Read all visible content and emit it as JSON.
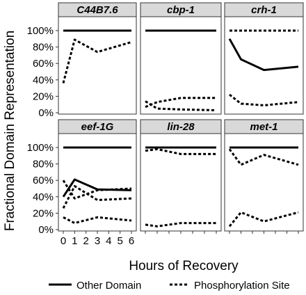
{
  "chart_data": {
    "type": "line",
    "ylabel": "Fractional Domain Representation",
    "xlabel": "Hours of Recovery",
    "ylim": [
      0,
      1
    ],
    "xlim": [
      0,
      6
    ],
    "x_ticks": [
      0,
      1,
      2,
      3,
      4,
      5,
      6
    ],
    "y_ticks": [
      "0%",
      "20%",
      "40%",
      "60%",
      "80%",
      "100%"
    ],
    "legend": {
      "placement": "bottom",
      "items": [
        {
          "label": "Other Domain",
          "style": "solid"
        },
        {
          "label": "Phosphorylation Site",
          "style": "dashed"
        }
      ]
    },
    "panels": [
      {
        "title": "C44B7.6",
        "series": [
          {
            "type": "Other Domain",
            "x": [
              0,
              1,
              3,
              6
            ],
            "values": [
              1.0,
              1.0,
              1.0,
              1.0
            ]
          },
          {
            "type": "Phosphorylation Site",
            "x": [
              0,
              1,
              3,
              6
            ],
            "values": [
              0.36,
              0.89,
              0.74,
              0.86
            ]
          }
        ]
      },
      {
        "title": "cbp-1",
        "series": [
          {
            "type": "Other Domain",
            "x": [
              0,
              1,
              3,
              6
            ],
            "values": [
              1.0,
              1.0,
              1.0,
              1.0
            ]
          },
          {
            "type": "Phosphorylation Site",
            "x": [
              0,
              1,
              3,
              6
            ],
            "values": [
              0.14,
              0.05,
              0.04,
              0.03
            ]
          },
          {
            "type": "Phosphorylation Site",
            "x": [
              0,
              1,
              3,
              6
            ],
            "values": [
              0.07,
              0.13,
              0.18,
              0.18
            ]
          }
        ]
      },
      {
        "title": "crh-1",
        "series": [
          {
            "type": "Other Domain",
            "x": [
              0,
              1,
              3,
              6
            ],
            "values": [
              0.9,
              0.65,
              0.52,
              0.56
            ]
          },
          {
            "type": "Phosphorylation Site",
            "x": [
              0,
              1,
              3,
              6
            ],
            "values": [
              1.0,
              1.0,
              1.0,
              1.0
            ]
          },
          {
            "type": "Phosphorylation Site",
            "x": [
              0,
              1,
              3,
              6
            ],
            "values": [
              0.22,
              0.11,
              0.09,
              0.13
            ]
          }
        ]
      },
      {
        "title": "eef-1G",
        "series": [
          {
            "type": "Other Domain",
            "x": [
              0,
              1,
              3,
              6
            ],
            "values": [
              0.4,
              0.61,
              0.49,
              0.48
            ]
          },
          {
            "type": "Other Domain",
            "x": [
              0,
              1,
              3,
              6
            ],
            "values": [
              1.0,
              1.0,
              1.0,
              1.0
            ]
          },
          {
            "type": "Phosphorylation Site",
            "x": [
              0,
              1,
              3,
              6
            ],
            "values": [
              0.6,
              0.38,
              0.48,
              0.5
            ]
          },
          {
            "type": "Phosphorylation Site",
            "x": [
              0,
              1,
              3,
              6
            ],
            "values": [
              0.26,
              0.53,
              0.36,
              0.38
            ]
          },
          {
            "type": "Phosphorylation Site",
            "x": [
              0,
              1,
              3,
              6
            ],
            "values": [
              0.15,
              0.08,
              0.15,
              0.11
            ]
          }
        ]
      },
      {
        "title": "lin-28",
        "series": [
          {
            "type": "Other Domain",
            "x": [
              0,
              1,
              3,
              6
            ],
            "values": [
              1.0,
              1.0,
              1.0,
              1.0
            ]
          },
          {
            "type": "Phosphorylation Site",
            "x": [
              0,
              1,
              3,
              6
            ],
            "values": [
              0.96,
              0.98,
              0.92,
              0.92
            ]
          },
          {
            "type": "Phosphorylation Site",
            "x": [
              0,
              1,
              3,
              6
            ],
            "values": [
              0.06,
              0.04,
              0.08,
              0.08
            ]
          }
        ]
      },
      {
        "title": "met-1",
        "series": [
          {
            "type": "Other Domain",
            "x": [
              0,
              1,
              3,
              6
            ],
            "values": [
              1.0,
              1.0,
              1.0,
              1.0
            ]
          },
          {
            "type": "Phosphorylation Site",
            "x": [
              0,
              1,
              3,
              6
            ],
            "values": [
              0.98,
              0.79,
              0.91,
              0.79
            ]
          },
          {
            "type": "Phosphorylation Site",
            "x": [
              0,
              1,
              3,
              6
            ],
            "values": [
              0.04,
              0.21,
              0.1,
              0.21
            ]
          }
        ]
      }
    ]
  }
}
